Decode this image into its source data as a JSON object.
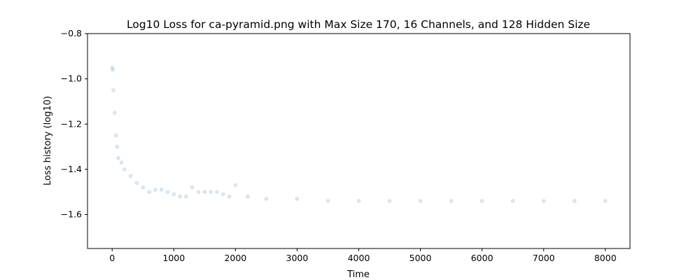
{
  "chart_data": {
    "type": "scatter",
    "title": "Log10 Loss for ca-pyramid.png with Max Size 170, 16 Channels, and 128 Hidden Size",
    "xlabel": "Time",
    "ylabel": "Loss history (log10)",
    "xlim": [
      -400,
      8400
    ],
    "ylim": [
      -1.75,
      -0.8
    ],
    "x_ticks": [
      0,
      1000,
      2000,
      3000,
      4000,
      5000,
      6000,
      7000,
      8000
    ],
    "x_tick_labels": [
      "0",
      "1000",
      "2000",
      "3000",
      "4000",
      "5000",
      "6000",
      "7000",
      "8000"
    ],
    "y_ticks": [
      -0.8,
      -1.0,
      -1.2,
      -1.4,
      -1.6
    ],
    "y_tick_labels": [
      "−0.8",
      "−1.0",
      "−1.2",
      "−1.4",
      "−1.6"
    ],
    "grid": false,
    "legend": "none",
    "marker_color": "#1f77b4",
    "marker_alpha": 0.15,
    "series": [
      {
        "x": [
          0,
          10,
          20,
          40,
          60,
          80,
          100,
          150,
          200,
          300,
          400,
          500,
          600,
          700,
          800,
          900,
          1000,
          1100,
          1200,
          1300,
          1400,
          1500,
          1600,
          1700,
          1800,
          1900,
          2000,
          2200,
          2500,
          3000,
          3500,
          4000,
          4500,
          5000,
          5500,
          6000,
          6500,
          7000,
          7500,
          8000
        ],
        "y": [
          -0.95,
          -0.96,
          -1.05,
          -1.15,
          -1.25,
          -1.3,
          -1.35,
          -1.37,
          -1.4,
          -1.43,
          -1.46,
          -1.48,
          -1.5,
          -1.49,
          -1.49,
          -1.5,
          -1.51,
          -1.52,
          -1.52,
          -1.48,
          -1.5,
          -1.5,
          -1.5,
          -1.5,
          -1.51,
          -1.52,
          -1.47,
          -1.52,
          -1.53,
          -1.53,
          -1.54,
          -1.54,
          -1.54,
          -1.54,
          -1.54,
          -1.54,
          -1.54,
          -1.54,
          -1.54,
          -1.54
        ]
      }
    ]
  }
}
